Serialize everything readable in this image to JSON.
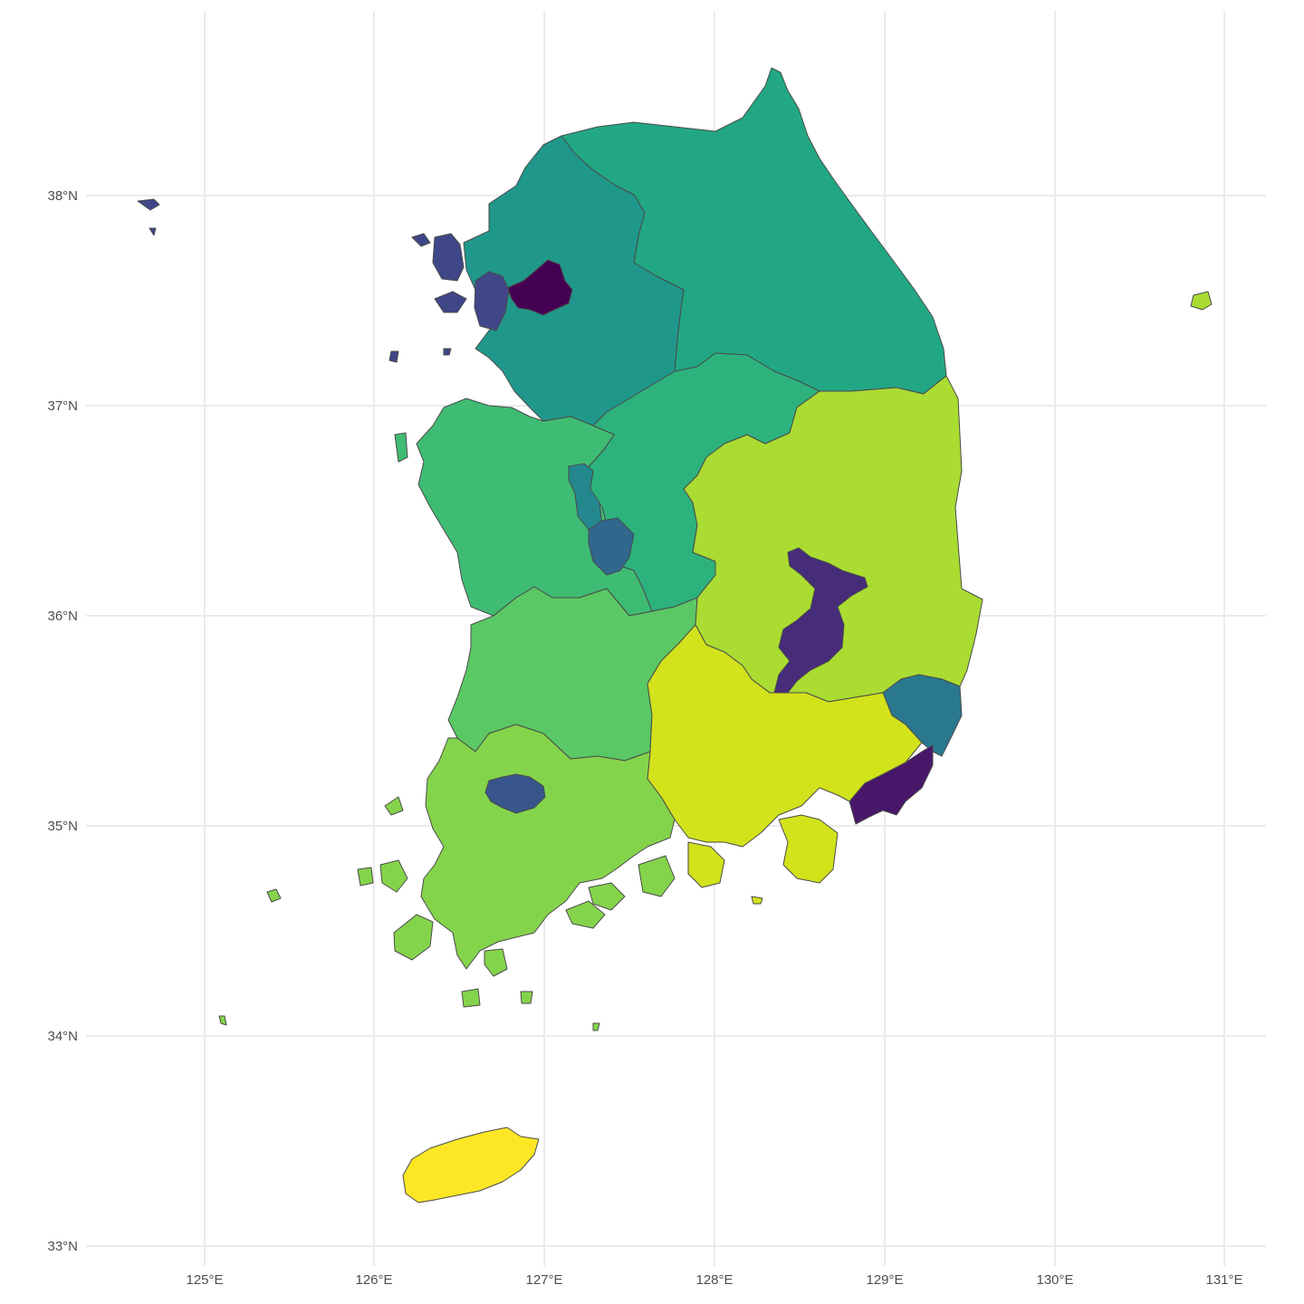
{
  "map": {
    "axes": {
      "x_ticks": [
        "125°E",
        "126°E",
        "127°E",
        "128°E",
        "129°E",
        "130°E",
        "131°E"
      ],
      "y_ticks": [
        "38°N",
        "37°N",
        "36°N",
        "35°N",
        "34°N",
        "33°N"
      ],
      "grid": true
    },
    "palette": "viridis",
    "colors": {
      "seoul": "#440154",
      "busan": "#481769",
      "daegu": "#472c7a",
      "incheon": "#3f4788",
      "gwangju": "#39568c",
      "daejeon": "#30678d",
      "ulsan": "#29788e",
      "sejong": "#23888e",
      "gyeonggi": "#1f988b",
      "gangwon": "#22a784",
      "chungbuk": "#2db27d",
      "chungnam": "#3fbc73",
      "jeonbuk": "#5ac864",
      "jeonnam": "#84d44b",
      "gyeongbuk": "#aadc32",
      "gyeongnam": "#d2e21b",
      "jeju": "#fde725",
      "outline": "#4a4a4a",
      "grid": "#ebebeb"
    }
  }
}
